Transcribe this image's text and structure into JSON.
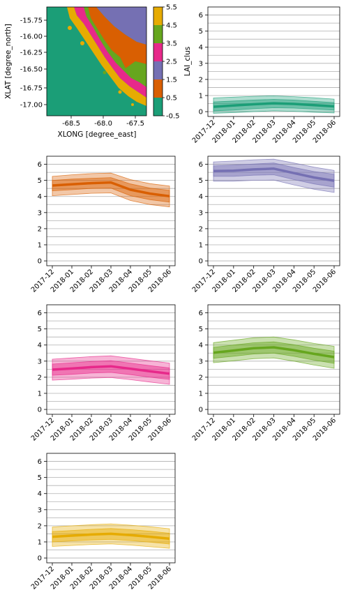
{
  "map_panel": {
    "xlabel": "XLONG [degree_east]",
    "ylabel": "XLAT [degree_north]",
    "xticks": [
      "-68.5",
      "-68.0",
      "-67.5"
    ],
    "yticks": [
      "-15.75",
      "-16.00",
      "-16.25",
      "-16.50",
      "-16.75",
      "-17.00"
    ],
    "colorbar_label": "LAI_clus",
    "colorbar_ticks": [
      "5.5",
      "4.5",
      "3.5",
      "2.5",
      "1.5",
      "0.5",
      "-0.5"
    ],
    "colors": [
      "#1b9e77",
      "#d95f02",
      "#7570b3",
      "#e7298a",
      "#66a61e",
      "#e6ab02"
    ]
  },
  "chart_data": [
    {
      "type": "line",
      "x": [
        "2017-12",
        "2018-01",
        "2018-02",
        "2018-03",
        "2018-04",
        "2018-05",
        "2018-06"
      ],
      "ylim": [
        -0.3,
        6.5
      ],
      "yticks": [
        "0",
        "1",
        "2",
        "3",
        "4",
        "5",
        "6"
      ],
      "color": "#1b9e77",
      "series": [
        {
          "role": "mean",
          "values": [
            0.3,
            0.38,
            0.46,
            0.52,
            0.48,
            0.4,
            0.33
          ]
        },
        {
          "role": "inner_low",
          "values": [
            0.05,
            0.1,
            0.18,
            0.24,
            0.22,
            0.16,
            0.1
          ]
        },
        {
          "role": "inner_high",
          "values": [
            0.6,
            0.66,
            0.72,
            0.76,
            0.72,
            0.64,
            0.56
          ]
        },
        {
          "role": "outer_low",
          "values": [
            -0.1,
            -0.06,
            0.0,
            0.05,
            0.02,
            -0.04,
            -0.08
          ]
        },
        {
          "role": "outer_high",
          "values": [
            0.85,
            0.9,
            0.95,
            0.98,
            0.93,
            0.86,
            0.78
          ]
        }
      ]
    },
    {
      "type": "line",
      "x": [
        "2017-12",
        "2018-01",
        "2018-02",
        "2018-03",
        "2018-04",
        "2018-05",
        "2018-06"
      ],
      "ylim": [
        -0.3,
        6.5
      ],
      "yticks": [
        "0",
        "1",
        "2",
        "3",
        "4",
        "5",
        "6"
      ],
      "color": "#d95f02",
      "series": [
        {
          "role": "mean",
          "values": [
            4.68,
            4.76,
            4.83,
            4.87,
            4.42,
            4.18,
            4.02
          ]
        },
        {
          "role": "inner_low",
          "values": [
            4.35,
            4.42,
            4.5,
            4.52,
            4.05,
            3.8,
            3.65
          ]
        },
        {
          "role": "inner_high",
          "values": [
            5.0,
            5.08,
            5.13,
            5.17,
            4.78,
            4.52,
            4.38
          ]
        },
        {
          "role": "outer_low",
          "values": [
            4.05,
            4.12,
            4.2,
            4.22,
            3.75,
            3.5,
            3.35
          ]
        },
        {
          "role": "outer_high",
          "values": [
            5.25,
            5.35,
            5.42,
            5.45,
            5.05,
            4.8,
            4.65
          ]
        }
      ]
    },
    {
      "type": "line",
      "x": [
        "2017-12",
        "2018-01",
        "2018-02",
        "2018-03",
        "2018-04",
        "2018-05",
        "2018-06"
      ],
      "ylim": [
        -0.3,
        6.5
      ],
      "yticks": [
        "0",
        "1",
        "2",
        "3",
        "4",
        "5",
        "6"
      ],
      "color": "#7570b3",
      "series": [
        {
          "role": "mean",
          "values": [
            5.58,
            5.6,
            5.68,
            5.73,
            5.45,
            5.18,
            4.98
          ]
        },
        {
          "role": "inner_low",
          "values": [
            5.25,
            5.25,
            5.32,
            5.35,
            5.05,
            4.78,
            4.58
          ]
        },
        {
          "role": "inner_high",
          "values": [
            5.9,
            5.95,
            6.02,
            6.08,
            5.8,
            5.55,
            5.38
          ]
        },
        {
          "role": "outer_low",
          "values": [
            4.95,
            4.95,
            5.0,
            5.02,
            4.72,
            4.45,
            4.25
          ]
        },
        {
          "role": "outer_high",
          "values": [
            6.15,
            6.2,
            6.28,
            6.32,
            6.08,
            5.82,
            5.62
          ]
        }
      ]
    },
    {
      "type": "line",
      "x": [
        "2017-12",
        "2018-01",
        "2018-02",
        "2018-03",
        "2018-04",
        "2018-05",
        "2018-06"
      ],
      "ylim": [
        -0.3,
        6.5
      ],
      "yticks": [
        "0",
        "1",
        "2",
        "3",
        "4",
        "5",
        "6"
      ],
      "color": "#e7298a",
      "series": [
        {
          "role": "mean",
          "values": [
            2.47,
            2.54,
            2.63,
            2.68,
            2.53,
            2.37,
            2.22
          ]
        },
        {
          "role": "inner_low",
          "values": [
            2.12,
            2.18,
            2.26,
            2.3,
            2.16,
            2.0,
            1.86
          ]
        },
        {
          "role": "inner_high",
          "values": [
            2.82,
            2.9,
            2.98,
            3.03,
            2.88,
            2.72,
            2.58
          ]
        },
        {
          "role": "outer_low",
          "values": [
            1.82,
            1.88,
            1.95,
            1.98,
            1.85,
            1.7,
            1.56
          ]
        },
        {
          "role": "outer_high",
          "values": [
            3.12,
            3.2,
            3.28,
            3.33,
            3.18,
            3.02,
            2.88
          ]
        }
      ]
    },
    {
      "type": "line",
      "x": [
        "2017-12",
        "2018-01",
        "2018-02",
        "2018-03",
        "2018-04",
        "2018-05",
        "2018-06"
      ],
      "ylim": [
        -0.3,
        6.5
      ],
      "yticks": [
        "0",
        "1",
        "2",
        "3",
        "4",
        "5",
        "6"
      ],
      "color": "#66a61e",
      "series": [
        {
          "role": "mean",
          "values": [
            3.52,
            3.66,
            3.8,
            3.86,
            3.68,
            3.45,
            3.25
          ]
        },
        {
          "role": "inner_low",
          "values": [
            3.18,
            3.3,
            3.44,
            3.5,
            3.3,
            3.06,
            2.86
          ]
        },
        {
          "role": "inner_high",
          "values": [
            3.86,
            4.0,
            4.14,
            4.2,
            4.02,
            3.8,
            3.62
          ]
        },
        {
          "role": "outer_low",
          "values": [
            2.9,
            3.02,
            3.15,
            3.2,
            3.0,
            2.76,
            2.56
          ]
        },
        {
          "role": "outer_high",
          "values": [
            4.15,
            4.3,
            4.45,
            4.5,
            4.32,
            4.1,
            3.92
          ]
        }
      ]
    },
    {
      "type": "line",
      "x": [
        "2017-12",
        "2018-01",
        "2018-02",
        "2018-03",
        "2018-04",
        "2018-05",
        "2018-06"
      ],
      "ylim": [
        -0.3,
        6.5
      ],
      "yticks": [
        "0",
        "1",
        "2",
        "3",
        "4",
        "5",
        "6"
      ],
      "color": "#e6ab02",
      "series": [
        {
          "role": "mean",
          "values": [
            1.32,
            1.39,
            1.46,
            1.5,
            1.42,
            1.32,
            1.2
          ]
        },
        {
          "role": "inner_low",
          "values": [
            1.0,
            1.06,
            1.12,
            1.16,
            1.08,
            0.98,
            0.87
          ]
        },
        {
          "role": "inner_high",
          "values": [
            1.64,
            1.71,
            1.78,
            1.83,
            1.76,
            1.66,
            1.54
          ]
        },
        {
          "role": "outer_low",
          "values": [
            0.72,
            0.78,
            0.84,
            0.88,
            0.8,
            0.7,
            0.6
          ]
        },
        {
          "role": "outer_high",
          "values": [
            1.92,
            2.0,
            2.07,
            2.12,
            2.04,
            1.94,
            1.82
          ]
        }
      ]
    }
  ]
}
